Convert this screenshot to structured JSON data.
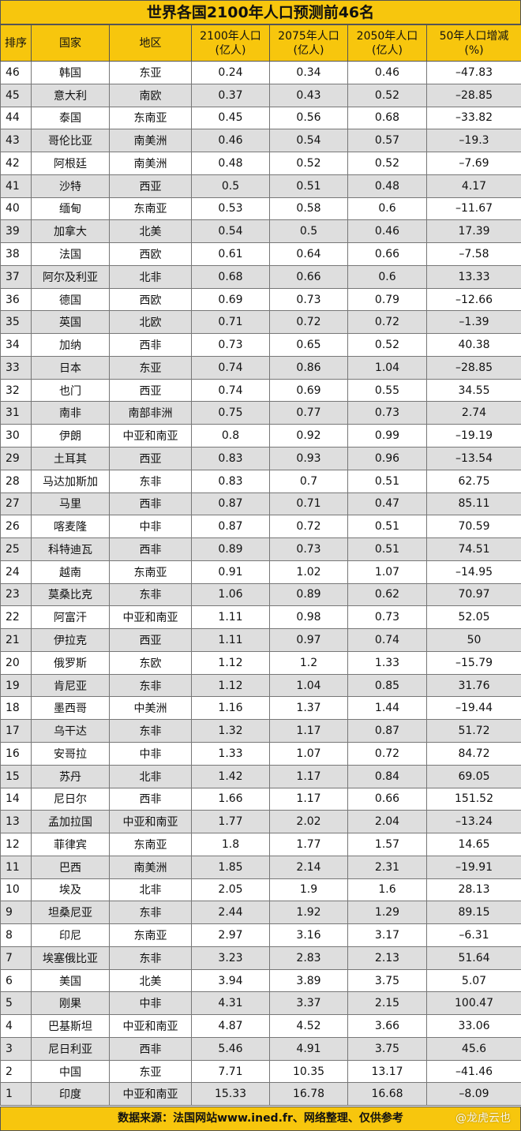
{
  "title": "世界各国2100年人口预测前46名",
  "headers": {
    "rank": "排序",
    "country": "国家",
    "region": "地区",
    "y2100_a": "2100年人口",
    "y2100_b": "(亿人)",
    "y2075_a": "2075年人口",
    "y2075_b": "(亿人)",
    "y2050_a": "2050年人口",
    "y2050_b": "(亿人)",
    "chg_a": "50年人口增减",
    "chg_b": "(%)"
  },
  "rows": [
    [
      "46",
      "韩国",
      "东亚",
      "0.24",
      "0.34",
      "0.46",
      "–47.83"
    ],
    [
      "45",
      "意大利",
      "南欧",
      "0.37",
      "0.43",
      "0.52",
      "–28.85"
    ],
    [
      "44",
      "泰国",
      "东南亚",
      "0.45",
      "0.56",
      "0.68",
      "–33.82"
    ],
    [
      "43",
      "哥伦比亚",
      "南美洲",
      "0.46",
      "0.54",
      "0.57",
      "–19.3"
    ],
    [
      "42",
      "阿根廷",
      "南美洲",
      "0.48",
      "0.52",
      "0.52",
      "–7.69"
    ],
    [
      "41",
      "沙特",
      "西亚",
      "0.5",
      "0.51",
      "0.48",
      "4.17"
    ],
    [
      "40",
      "缅甸",
      "东南亚",
      "0.53",
      "0.58",
      "0.6",
      "–11.67"
    ],
    [
      "39",
      "加拿大",
      "北美",
      "0.54",
      "0.5",
      "0.46",
      "17.39"
    ],
    [
      "38",
      "法国",
      "西欧",
      "0.61",
      "0.64",
      "0.66",
      "–7.58"
    ],
    [
      "37",
      "阿尔及利亚",
      "北非",
      "0.68",
      "0.66",
      "0.6",
      "13.33"
    ],
    [
      "36",
      "德国",
      "西欧",
      "0.69",
      "0.73",
      "0.79",
      "–12.66"
    ],
    [
      "35",
      "英国",
      "北欧",
      "0.71",
      "0.72",
      "0.72",
      "–1.39"
    ],
    [
      "34",
      "加纳",
      "西非",
      "0.73",
      "0.65",
      "0.52",
      "40.38"
    ],
    [
      "33",
      "日本",
      "东亚",
      "0.74",
      "0.86",
      "1.04",
      "–28.85"
    ],
    [
      "32",
      "也门",
      "西亚",
      "0.74",
      "0.69",
      "0.55",
      "34.55"
    ],
    [
      "31",
      "南非",
      "南部非洲",
      "0.75",
      "0.77",
      "0.73",
      "2.74"
    ],
    [
      "30",
      "伊朗",
      "中亚和南亚",
      "0.8",
      "0.92",
      "0.99",
      "–19.19"
    ],
    [
      "29",
      "土耳其",
      "西亚",
      "0.83",
      "0.93",
      "0.96",
      "–13.54"
    ],
    [
      "28",
      "马达加斯加",
      "东非",
      "0.83",
      "0.7",
      "0.51",
      "62.75"
    ],
    [
      "27",
      "马里",
      "西非",
      "0.87",
      "0.71",
      "0.47",
      "85.11"
    ],
    [
      "26",
      "喀麦隆",
      "中非",
      "0.87",
      "0.72",
      "0.51",
      "70.59"
    ],
    [
      "25",
      "科特迪瓦",
      "西非",
      "0.89",
      "0.73",
      "0.51",
      "74.51"
    ],
    [
      "24",
      "越南",
      "东南亚",
      "0.91",
      "1.02",
      "1.07",
      "–14.95"
    ],
    [
      "23",
      "莫桑比克",
      "东非",
      "1.06",
      "0.89",
      "0.62",
      "70.97"
    ],
    [
      "22",
      "阿富汗",
      "中亚和南亚",
      "1.11",
      "0.98",
      "0.73",
      "52.05"
    ],
    [
      "21",
      "伊拉克",
      "西亚",
      "1.11",
      "0.97",
      "0.74",
      "50"
    ],
    [
      "20",
      "俄罗斯",
      "东欧",
      "1.12",
      "1.2",
      "1.33",
      "–15.79"
    ],
    [
      "19",
      "肯尼亚",
      "东非",
      "1.12",
      "1.04",
      "0.85",
      "31.76"
    ],
    [
      "18",
      "墨西哥",
      "中美洲",
      "1.16",
      "1.37",
      "1.44",
      "–19.44"
    ],
    [
      "17",
      "乌干达",
      "东非",
      "1.32",
      "1.17",
      "0.87",
      "51.72"
    ],
    [
      "16",
      "安哥拉",
      "中非",
      "1.33",
      "1.07",
      "0.72",
      "84.72"
    ],
    [
      "15",
      "苏丹",
      "北非",
      "1.42",
      "1.17",
      "0.84",
      "69.05"
    ],
    [
      "14",
      "尼日尔",
      "西非",
      "1.66",
      "1.17",
      "0.66",
      "151.52"
    ],
    [
      "13",
      "孟加拉国",
      "中亚和南亚",
      "1.77",
      "2.02",
      "2.04",
      "–13.24"
    ],
    [
      "12",
      "菲律宾",
      "东南亚",
      "1.8",
      "1.77",
      "1.57",
      "14.65"
    ],
    [
      "11",
      "巴西",
      "南美洲",
      "1.85",
      "2.14",
      "2.31",
      "–19.91"
    ],
    [
      "10",
      "埃及",
      "北非",
      "2.05",
      "1.9",
      "1.6",
      "28.13"
    ],
    [
      "9",
      "坦桑尼亚",
      "东非",
      "2.44",
      "1.92",
      "1.29",
      "89.15"
    ],
    [
      "8",
      "印尼",
      "东南亚",
      "2.97",
      "3.16",
      "3.17",
      "–6.31"
    ],
    [
      "7",
      "埃塞俄比亚",
      "东非",
      "3.23",
      "2.83",
      "2.13",
      "51.64"
    ],
    [
      "6",
      "美国",
      "北美",
      "3.94",
      "3.89",
      "3.75",
      "5.07"
    ],
    [
      "5",
      "刚果",
      "中非",
      "4.31",
      "3.37",
      "2.15",
      "100.47"
    ],
    [
      "4",
      "巴基斯坦",
      "中亚和南亚",
      "4.87",
      "4.52",
      "3.66",
      "33.06"
    ],
    [
      "3",
      "尼日利亚",
      "西非",
      "5.46",
      "4.91",
      "3.75",
      "45.6"
    ],
    [
      "2",
      "中国",
      "东亚",
      "7.71",
      "10.35",
      "13.17",
      "–41.46"
    ],
    [
      "1",
      "印度",
      "中亚和南亚",
      "15.33",
      "16.78",
      "16.68",
      "–8.09"
    ]
  ],
  "footer": "数据来源：法国网站www.ined.fr、网络整理、仅供参考",
  "watermark": "@龙虎云也",
  "colors": {
    "header_bg": "#f7c60d",
    "alt_row": "#dedede"
  }
}
